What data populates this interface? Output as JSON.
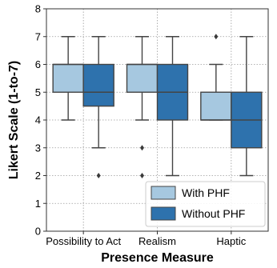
{
  "chart_data": {
    "type": "box",
    "xlabel": "Presence Measure",
    "ylabel": "Likert Scale (1-to-7)",
    "ylim": [
      0,
      8
    ],
    "yticks": [
      0,
      1,
      2,
      3,
      4,
      5,
      6,
      7,
      8
    ],
    "grid": true,
    "legend_position": "lower-right",
    "categories": [
      "Possibility to Act",
      "Realism",
      "Haptic"
    ],
    "series": [
      {
        "name": "With PHF",
        "color": "#a6c8e0",
        "boxes": [
          {
            "whislo": 4,
            "q1": 5,
            "med": 6,
            "q3": 6,
            "whishi": 7,
            "fliers": []
          },
          {
            "whislo": 4,
            "q1": 5,
            "med": 6,
            "q3": 6,
            "whishi": 7,
            "fliers": [
              3,
              2
            ]
          },
          {
            "whislo": 4,
            "q1": 4,
            "med": 4,
            "q3": 5,
            "whishi": 6,
            "fliers": [
              7
            ]
          }
        ]
      },
      {
        "name": "Without PHF",
        "color": "#2e72ad",
        "boxes": [
          {
            "whislo": 3,
            "q1": 4.5,
            "med": 5,
            "q3": 6,
            "whishi": 7,
            "fliers": [
              2
            ]
          },
          {
            "whislo": 2,
            "q1": 4,
            "med": 5,
            "q3": 6,
            "whishi": 7,
            "fliers": []
          },
          {
            "whislo": 2,
            "q1": 3,
            "med": 4,
            "q3": 5,
            "whishi": 7,
            "fliers": []
          }
        ]
      }
    ]
  }
}
